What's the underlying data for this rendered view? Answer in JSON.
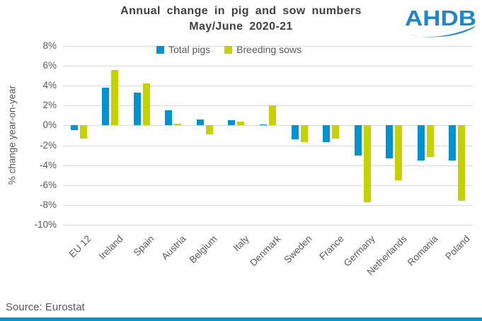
{
  "header": {
    "title_line1": "Annual change in pig and sow numbers",
    "title_line2": "May/June 2020-21",
    "logo_text": "AHDB"
  },
  "footer": {
    "source": "Source: Eurostat"
  },
  "colors": {
    "total_pigs": "#0093D1",
    "breeding_sows": "#C6D200",
    "logo_blue": "#1E87C8",
    "bottom_strip": "#0093D1",
    "grid": "#D9D9D9",
    "axis_text": "#595959",
    "title_text": "#404040"
  },
  "chart_data": {
    "type": "bar",
    "title": "Annual change in pig and sow numbers May/June 2020-21",
    "categories": [
      "EU 12",
      "Ireland",
      "Spain",
      "Austria",
      "Belgium",
      "Italy",
      "Denmark",
      "Sweden",
      "France",
      "Germany",
      "Netherlands",
      "Romania",
      "Poland"
    ],
    "series": [
      {
        "name": "Total pigs",
        "color": "#0093D1",
        "values": [
          -0.5,
          3.8,
          3.3,
          1.5,
          0.6,
          0.5,
          0.1,
          -1.4,
          -1.7,
          -3.0,
          -3.3,
          -3.5,
          -3.5
        ]
      },
      {
        "name": "Breeding sows",
        "color": "#C6D200",
        "values": [
          -1.3,
          5.6,
          4.2,
          0.2,
          -0.9,
          0.4,
          2.0,
          -1.7,
          -1.3,
          -7.7,
          -5.5,
          -3.2,
          -7.6
        ]
      }
    ],
    "xlabel": "",
    "ylabel": "% change year-on-year",
    "ylim": [
      -10,
      8
    ],
    "ytick_step": 2,
    "ytick_suffix": "%",
    "grid": true,
    "legend_position": "top-center"
  }
}
